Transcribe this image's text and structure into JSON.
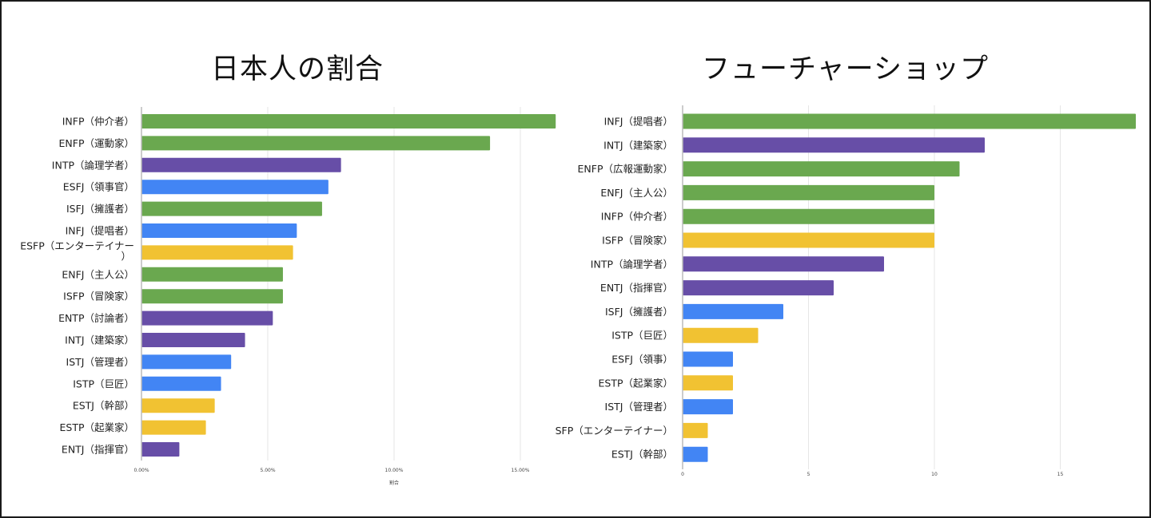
{
  "chart_data": [
    {
      "type": "bar",
      "orientation": "horizontal",
      "title": "日本人の割合",
      "xlabel": "割合",
      "ylabel": "",
      "xlim": [
        0,
        0.165
      ],
      "xticks": [
        0,
        0.05,
        0.1,
        0.15
      ],
      "tick_labels": [
        "0.00%",
        "5.00%",
        "10.00%",
        "15.00%"
      ],
      "grid": true,
      "legend": "none",
      "categories": [
        "INFP（仲介者）",
        "ENFP（運動家）",
        "INTP（論理学者）",
        "ESFJ（領事官）",
        "ISFJ（擁護者）",
        "INFJ（提唱者）",
        "ESFP（エンターテイナー）",
        "ENFJ（主人公）",
        "ISFP（冒険家）",
        "ENTP（討論者）",
        "INTJ（建築家）",
        "ISTJ（管理者）",
        "ISTP（巨匠）",
        "ESTJ（幹部）",
        "ESTP（起業家）",
        "ENTJ（指揮官）"
      ],
      "values": [
        0.164,
        0.138,
        0.079,
        0.074,
        0.0715,
        0.0615,
        0.06,
        0.056,
        0.056,
        0.052,
        0.041,
        0.0355,
        0.0315,
        0.029,
        0.0255,
        0.015
      ],
      "colors": [
        "#6aa84f",
        "#6aa84f",
        "#674ea7",
        "#4285f4",
        "#6aa84f",
        "#4285f4",
        "#f1c232",
        "#6aa84f",
        "#6aa84f",
        "#674ea7",
        "#674ea7",
        "#4285f4",
        "#4285f4",
        "#f1c232",
        "#f1c232",
        "#674ea7"
      ]
    },
    {
      "type": "bar",
      "orientation": "horizontal",
      "title": "フューチャーショップ",
      "xlabel": "",
      "ylabel": "",
      "xlim": [
        0,
        18
      ],
      "xticks": [
        0,
        5,
        10,
        15
      ],
      "tick_labels": [
        "0",
        "5",
        "10",
        "15"
      ],
      "grid": true,
      "legend": "none",
      "categories": [
        "INFJ（提唱者）",
        "INTJ（建築家）",
        "ENFP（広報運動家）",
        "ENFJ（主人公）",
        "INFP（仲介者）",
        "ISFP（冒険家）",
        "INTP（論理学者）",
        "ENTJ（指揮官）",
        "ISFJ（擁護者）",
        "ISTP（巨匠）",
        "ESFJ（領事）",
        "ESTP（起業家）",
        "ISTJ（管理者）",
        "SFP（エンターテイナー）",
        "ESTJ（幹部）"
      ],
      "values": [
        18,
        12,
        11,
        10,
        10,
        10,
        8,
        6,
        4,
        3,
        2,
        2,
        2,
        1,
        1
      ],
      "colors": [
        "#6aa84f",
        "#674ea7",
        "#6aa84f",
        "#6aa84f",
        "#6aa84f",
        "#f1c232",
        "#674ea7",
        "#674ea7",
        "#4285f4",
        "#f1c232",
        "#4285f4",
        "#f1c232",
        "#4285f4",
        "#f1c232",
        "#4285f4"
      ]
    }
  ],
  "colors": {
    "green": "#6aa84f",
    "purple": "#674ea7",
    "blue": "#4285f4",
    "yellow": "#f1c232",
    "grid": "#e6e6e6",
    "axis": "#bbbbbb"
  }
}
